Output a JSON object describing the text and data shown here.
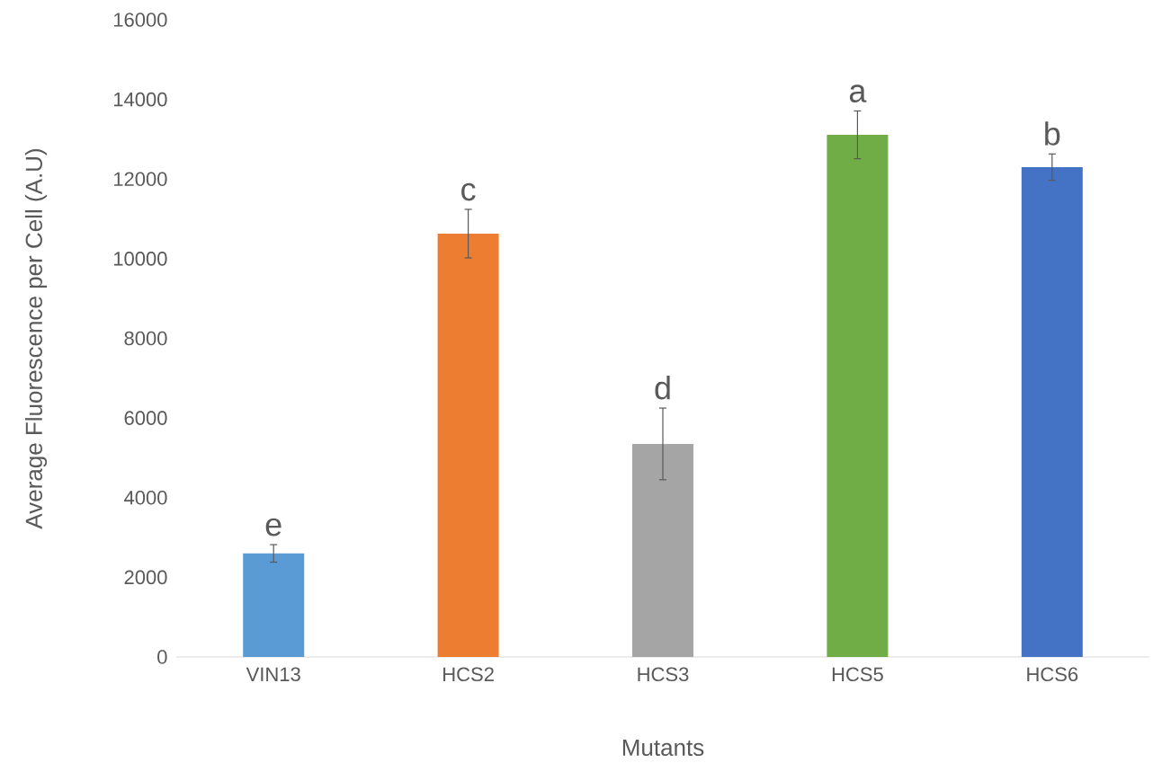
{
  "chart_data": {
    "type": "bar",
    "xlabel": "Mutants",
    "ylabel": "Average Fluorescence per Cell (A.U)",
    "categories": [
      "VIN13",
      "HCS2",
      "HCS3",
      "HCS5",
      "HCS6"
    ],
    "values": [
      2600,
      10630,
      5350,
      13110,
      12300
    ],
    "errors": [
      220,
      610,
      900,
      600,
      330
    ],
    "colors": [
      "#5b9bd5",
      "#ed7d31",
      "#a5a5a5",
      "#70ad47",
      "#4472c4"
    ],
    "ylim": [
      0,
      16000
    ],
    "yticks": [
      0,
      2000,
      4000,
      6000,
      8000,
      10000,
      12000,
      14000,
      16000
    ],
    "grid": false,
    "annotations": [
      "e",
      "c",
      "d",
      "a",
      "b"
    ]
  }
}
